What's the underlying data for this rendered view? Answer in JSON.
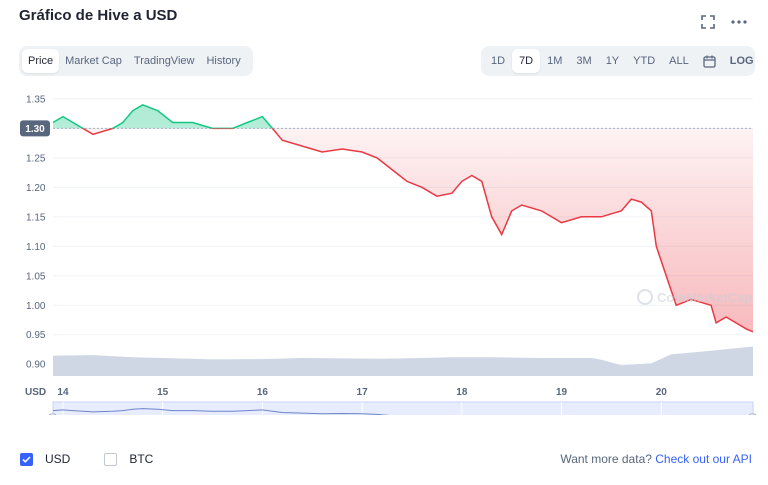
{
  "header": {
    "title": "Gráfico de Hive a USD",
    "fullscreen_icon": "expand-icon",
    "more_icon": "more-dots-icon"
  },
  "tabs": [
    {
      "label": "Price",
      "active": true
    },
    {
      "label": "Market Cap",
      "active": false
    },
    {
      "label": "TradingView",
      "active": false
    },
    {
      "label": "History",
      "active": false
    }
  ],
  "ranges": [
    {
      "label": "1D",
      "active": false
    },
    {
      "label": "7D",
      "active": true
    },
    {
      "label": "1M",
      "active": false
    },
    {
      "label": "3M",
      "active": false
    },
    {
      "label": "1Y",
      "active": false
    },
    {
      "label": "YTD",
      "active": false
    },
    {
      "label": "ALL",
      "active": false
    }
  ],
  "calendar_icon": "calendar-icon",
  "log_label": "LOG",
  "watermark": "CoinMarketCap",
  "chart_data": {
    "type": "line",
    "currency_label": "USD",
    "ylim": [
      0.88,
      1.36
    ],
    "y_ticks": [
      "1.35",
      "1.30",
      "1.25",
      "1.20",
      "1.15",
      "1.10",
      "1.05",
      "1.00",
      "0.95",
      "0.90"
    ],
    "baseline": 1.3,
    "baseline_label": "1.30",
    "x_range": [
      13.9,
      20.92
    ],
    "x_ticks": [
      "14",
      "15",
      "16",
      "17",
      "18",
      "19",
      "20"
    ],
    "up_color": "#16c784",
    "down_color": "#ea3943",
    "volume_color": "#cfd6e4",
    "grid": true,
    "price": [
      [
        13.9,
        1.31
      ],
      [
        14.0,
        1.32
      ],
      [
        14.1,
        1.31
      ],
      [
        14.3,
        1.29
      ],
      [
        14.5,
        1.3
      ],
      [
        14.6,
        1.31
      ],
      [
        14.7,
        1.33
      ],
      [
        14.8,
        1.34
      ],
      [
        14.95,
        1.33
      ],
      [
        15.1,
        1.31
      ],
      [
        15.3,
        1.31
      ],
      [
        15.5,
        1.3
      ],
      [
        15.7,
        1.3
      ],
      [
        15.85,
        1.31
      ],
      [
        16.0,
        1.32
      ],
      [
        16.1,
        1.3
      ],
      [
        16.2,
        1.28
      ],
      [
        16.4,
        1.27
      ],
      [
        16.6,
        1.26
      ],
      [
        16.8,
        1.265
      ],
      [
        17.0,
        1.26
      ],
      [
        17.15,
        1.25
      ],
      [
        17.3,
        1.23
      ],
      [
        17.45,
        1.21
      ],
      [
        17.6,
        1.2
      ],
      [
        17.75,
        1.185
      ],
      [
        17.9,
        1.19
      ],
      [
        18.0,
        1.21
      ],
      [
        18.1,
        1.22
      ],
      [
        18.2,
        1.21
      ],
      [
        18.3,
        1.15
      ],
      [
        18.4,
        1.12
      ],
      [
        18.5,
        1.16
      ],
      [
        18.6,
        1.17
      ],
      [
        18.8,
        1.16
      ],
      [
        19.0,
        1.14
      ],
      [
        19.2,
        1.15
      ],
      [
        19.4,
        1.15
      ],
      [
        19.6,
        1.16
      ],
      [
        19.7,
        1.18
      ],
      [
        19.8,
        1.175
      ],
      [
        19.9,
        1.16
      ],
      [
        19.95,
        1.1
      ],
      [
        20.05,
        1.05
      ],
      [
        20.15,
        1.0
      ],
      [
        20.3,
        1.01
      ],
      [
        20.5,
        1.0
      ],
      [
        20.55,
        0.97
      ],
      [
        20.65,
        0.98
      ],
      [
        20.75,
        0.97
      ],
      [
        20.85,
        0.96
      ],
      [
        20.92,
        0.955
      ]
    ],
    "volume": [
      [
        13.9,
        0.56
      ],
      [
        14.3,
        0.58
      ],
      [
        14.7,
        0.52
      ],
      [
        15.0,
        0.5
      ],
      [
        15.5,
        0.46
      ],
      [
        16.0,
        0.47
      ],
      [
        16.4,
        0.5
      ],
      [
        16.8,
        0.49
      ],
      [
        17.2,
        0.48
      ],
      [
        17.6,
        0.5
      ],
      [
        17.9,
        0.52
      ],
      [
        18.3,
        0.52
      ],
      [
        18.8,
        0.5
      ],
      [
        19.3,
        0.5
      ],
      [
        19.4,
        0.45
      ],
      [
        19.6,
        0.3
      ],
      [
        19.9,
        0.35
      ],
      [
        20.1,
        0.6
      ],
      [
        20.5,
        0.7
      ],
      [
        20.92,
        0.82
      ]
    ]
  },
  "navigator": {
    "x_ticks": [
      "14",
      "15",
      "16",
      "17",
      "18",
      "19",
      "20"
    ]
  },
  "footer": {
    "usd_label": "USD",
    "usd_checked": true,
    "btc_label": "BTC",
    "btc_checked": false,
    "api_prefix": "Want more data?",
    "api_link": "Check out our API"
  }
}
